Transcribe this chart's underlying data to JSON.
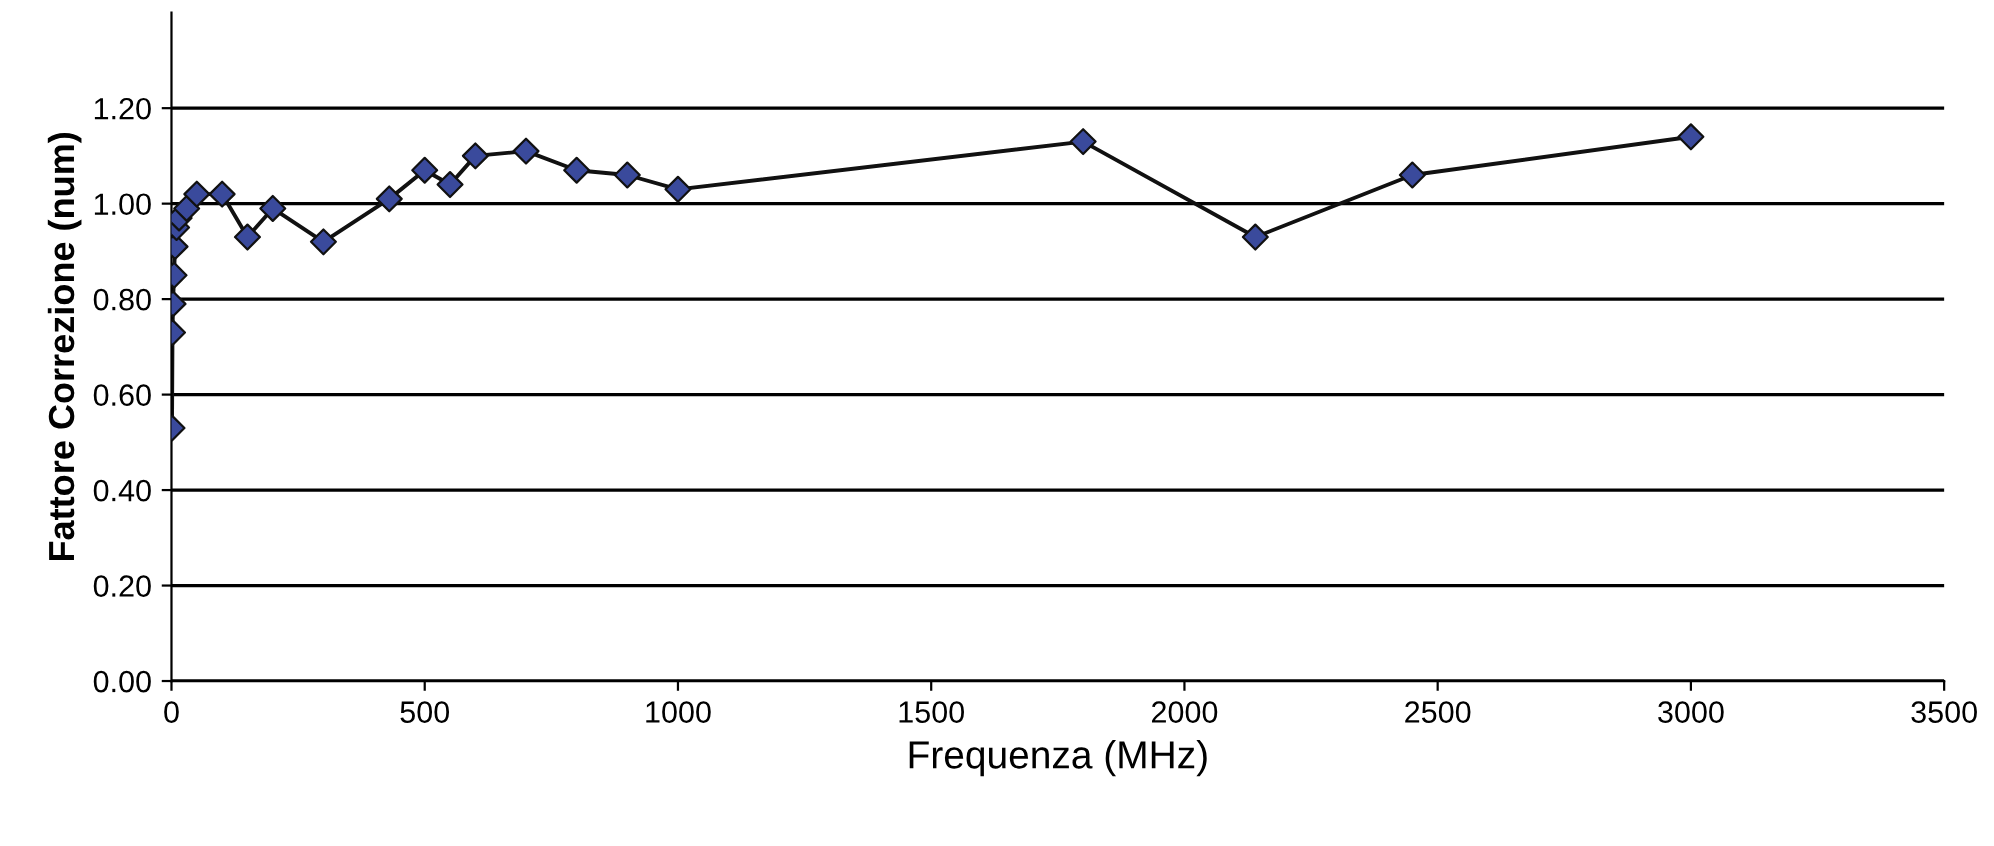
{
  "chart_data": {
    "type": "line",
    "xlabel": "Frequenza (MHz)",
    "ylabel": "Fattore Correzione (num)",
    "x": [
      1,
      2,
      3,
      5,
      7,
      10,
      15,
      30,
      50,
      100,
      150,
      200,
      300,
      430,
      500,
      550,
      600,
      700,
      800,
      900,
      1000,
      1800,
      2140,
      2450,
      3000
    ],
    "series": [
      {
        "color": "#3a4a9c",
        "values": [
          0.53,
          0.73,
          0.79,
          0.85,
          0.91,
          0.95,
          0.97,
          0.99,
          1.02,
          1.02,
          0.93,
          0.99,
          0.92,
          1.01,
          1.07,
          1.04,
          1.1,
          1.11,
          1.07,
          1.06,
          1.03,
          1.13,
          0.93,
          1.06,
          1.14
        ]
      }
    ],
    "xlim": [
      0,
      3500
    ],
    "xticks": [
      0,
      500,
      1000,
      1500,
      2000,
      2500,
      3000,
      3500
    ],
    "ylim": [
      0,
      1.4
    ],
    "yticks": [
      {
        "value": 0,
        "label": "0.00"
      },
      {
        "value": 0.2,
        "label": "0.20"
      },
      {
        "value": 0.4,
        "label": "0.40"
      },
      {
        "value": 0.6,
        "label": "0.60"
      },
      {
        "value": 0.8,
        "label": "0.80"
      },
      {
        "value": 1.0,
        "label": "1.00"
      },
      {
        "value": 1.2,
        "label": "1.20"
      }
    ],
    "grid": "y",
    "marker": "diamond",
    "line_style": "solid"
  }
}
